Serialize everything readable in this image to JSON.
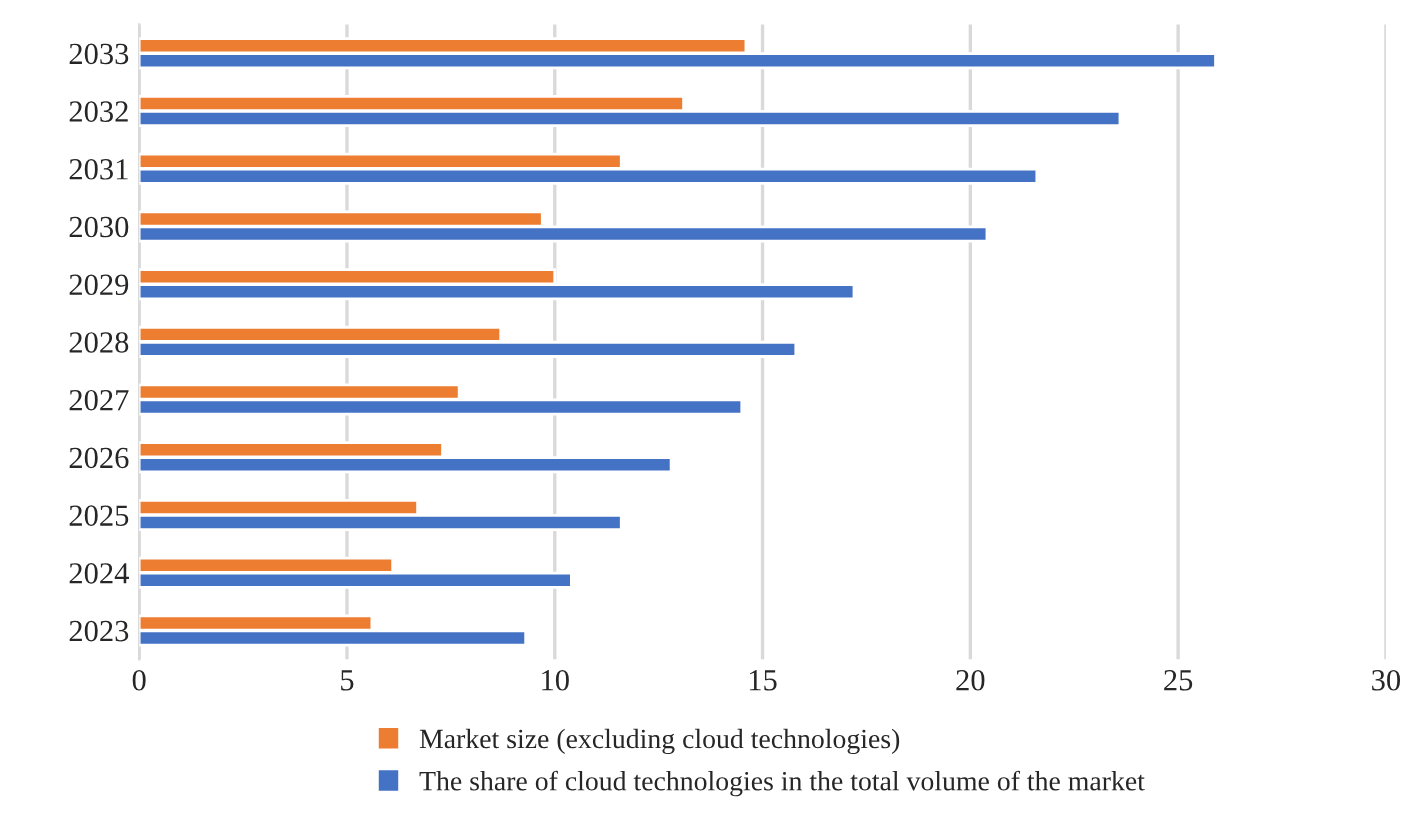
{
  "chart_data": {
    "type": "bar",
    "orientation": "horizontal",
    "categories": [
      "2033",
      "2032",
      "2031",
      "2030",
      "2029",
      "2028",
      "2027",
      "2026",
      "2025",
      "2024",
      "2023"
    ],
    "series": [
      {
        "name": "Market size (excluding cloud technologies)",
        "color": "#ed7d31",
        "values": [
          14.6,
          13.1,
          11.6,
          9.7,
          10.0,
          8.7,
          7.7,
          7.3,
          6.7,
          6.1,
          5.6
        ]
      },
      {
        "name": "The share of cloud technologies in the total volume of the market",
        "color": "#4472c4",
        "values": [
          25.9,
          23.6,
          21.6,
          20.4,
          17.2,
          15.8,
          14.5,
          12.8,
          11.6,
          10.4,
          9.3
        ]
      }
    ],
    "xlim": [
      0,
      30
    ],
    "xticks": [
      0,
      5,
      10,
      15,
      20,
      25,
      30
    ],
    "grid": "x",
    "legend": "bottom"
  }
}
